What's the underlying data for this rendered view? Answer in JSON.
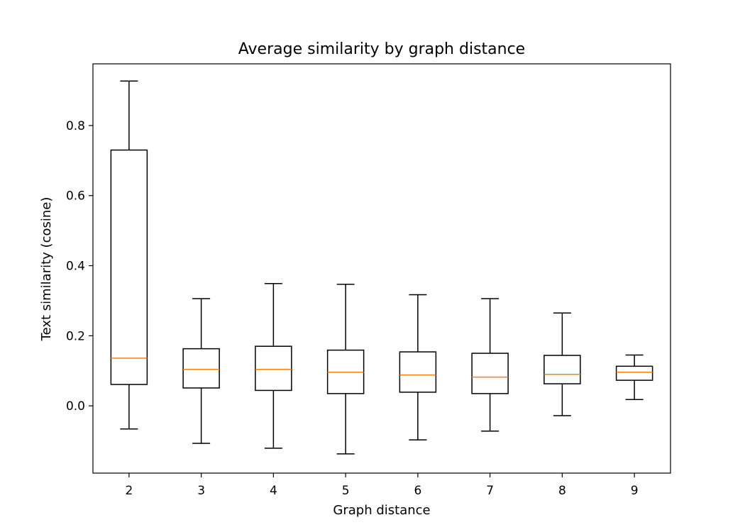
{
  "chart_data": {
    "type": "boxplot",
    "title": "Average similarity by graph distance",
    "xlabel": "Graph distance",
    "ylabel": "Text similarity (cosine)",
    "categories": [
      "2",
      "3",
      "4",
      "5",
      "6",
      "7",
      "8",
      "9"
    ],
    "boxes": [
      {
        "category": "2",
        "whisker_low": -0.066,
        "q1": 0.061,
        "median": 0.136,
        "q3": 0.73,
        "whisker_high": 0.927
      },
      {
        "category": "3",
        "whisker_low": -0.107,
        "q1": 0.051,
        "median": 0.104,
        "q3": 0.163,
        "whisker_high": 0.306
      },
      {
        "category": "4",
        "whisker_low": -0.121,
        "q1": 0.044,
        "median": 0.104,
        "q3": 0.17,
        "whisker_high": 0.349
      },
      {
        "category": "5",
        "whisker_low": -0.137,
        "q1": 0.035,
        "median": 0.096,
        "q3": 0.159,
        "whisker_high": 0.347
      },
      {
        "category": "6",
        "whisker_low": -0.097,
        "q1": 0.039,
        "median": 0.088,
        "q3": 0.154,
        "whisker_high": 0.317
      },
      {
        "category": "7",
        "whisker_low": -0.072,
        "q1": 0.035,
        "median": 0.082,
        "q3": 0.15,
        "whisker_high": 0.306
      },
      {
        "category": "8",
        "whisker_low": -0.028,
        "q1": 0.063,
        "median": 0.09,
        "q3": 0.144,
        "whisker_high": 0.265
      },
      {
        "category": "9",
        "whisker_low": 0.018,
        "q1": 0.073,
        "median": 0.096,
        "q3": 0.113,
        "whisker_high": 0.145
      }
    ],
    "yticks": [
      0.0,
      0.2,
      0.4,
      0.6,
      0.8
    ],
    "ytick_labels": [
      "0.0",
      "0.2",
      "0.4",
      "0.6",
      "0.8"
    ],
    "ylim": [
      -0.192,
      0.976
    ],
    "grid": false,
    "colors": {
      "box": "#000000",
      "median": "#ff7f0e",
      "axes": "#000000",
      "background": "#ffffff"
    }
  }
}
